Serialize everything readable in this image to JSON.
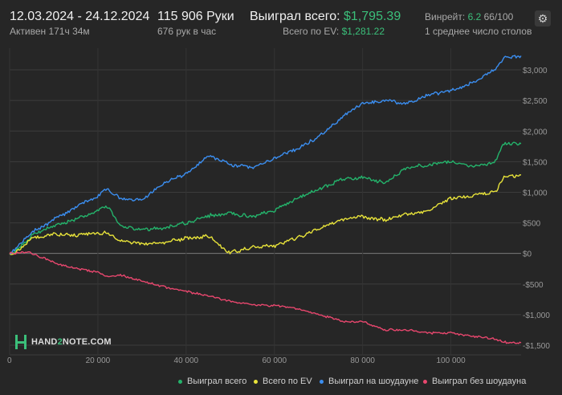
{
  "header": {
    "date_range": "12.03.2024 - 24.12.2024",
    "active_time": "Активен 171ч 34м",
    "hands": "115 906 Руки",
    "hands_per_hour": "676 рук в час",
    "won_total_label": "Выиграл всего:",
    "won_total_value": "$1,795.39",
    "ev_label": "Всего по EV:",
    "ev_value": "$1,281.22",
    "winrate_label": "Винрейт:",
    "winrate_value": "6.2",
    "winrate_rest": "66/100",
    "tables": "1 среднее число столов",
    "gear_icon": "gear-icon"
  },
  "logo": {
    "text_a": "HAND",
    "text_b": "2",
    "text_c": "NOTE.COM"
  },
  "colors": {
    "won_total": "#24b36b",
    "ev": "#e8e33a",
    "showdown": "#3b8ef0",
    "non_showdown": "#e8476e",
    "background": "#262626",
    "grid": "#3c3c3c"
  },
  "chart_data": {
    "type": "line",
    "xlim": [
      0,
      115906
    ],
    "ylim": [
      -1500,
      3250
    ],
    "x_ticks": [
      0,
      20000,
      40000,
      60000,
      80000,
      100000
    ],
    "x_tick_labels": [
      "0",
      "20 000",
      "40 000",
      "60 000",
      "80 000",
      "100 000"
    ],
    "y_ticks": [
      3000,
      2500,
      2000,
      1500,
      1000,
      500,
      0,
      -500,
      -1000,
      -1500
    ],
    "y_tick_labels": [
      "$3,000",
      "$2,500",
      "$2,000",
      "$1,500",
      "$1,000",
      "$500",
      "$0",
      "-$500",
      "-$1,000",
      "-$1,500"
    ],
    "x": [
      0,
      2000,
      5000,
      10000,
      15000,
      20000,
      22000,
      25000,
      30000,
      35000,
      40000,
      45000,
      50000,
      55000,
      60000,
      65000,
      70000,
      75000,
      80000,
      85000,
      90000,
      95000,
      100000,
      105000,
      110000,
      112000,
      115906
    ],
    "series": [
      {
        "name": "Выиграл всего",
        "color": "#24b36b",
        "values": [
          0,
          80,
          300,
          450,
          550,
          700,
          780,
          450,
          380,
          420,
          500,
          620,
          650,
          600,
          700,
          900,
          1050,
          1200,
          1250,
          1150,
          1400,
          1450,
          1500,
          1420,
          1500,
          1800,
          1795
        ]
      },
      {
        "name": "Всего по EV",
        "color": "#e8e33a",
        "values": [
          0,
          50,
          250,
          320,
          300,
          330,
          350,
          200,
          150,
          180,
          250,
          280,
          10,
          100,
          120,
          250,
          400,
          550,
          600,
          550,
          650,
          700,
          900,
          950,
          1000,
          1250,
          1281
        ]
      },
      {
        "name": "Выиграл на шоудауне",
        "color": "#3b8ef0",
        "values": [
          0,
          120,
          350,
          550,
          750,
          950,
          1050,
          900,
          880,
          1150,
          1300,
          1600,
          1450,
          1400,
          1550,
          1700,
          1900,
          2200,
          2450,
          2500,
          2450,
          2600,
          2650,
          2800,
          3000,
          3200,
          3230
        ]
      },
      {
        "name": "Выиграл без шоудауна",
        "color": "#e8476e",
        "values": [
          0,
          20,
          0,
          -150,
          -250,
          -300,
          -380,
          -350,
          -450,
          -550,
          -620,
          -700,
          -780,
          -850,
          -850,
          -900,
          -1000,
          -1100,
          -1120,
          -1250,
          -1250,
          -1300,
          -1300,
          -1350,
          -1400,
          -1450,
          -1460
        ]
      }
    ],
    "legend_position": "bottom-right",
    "grid": true
  }
}
